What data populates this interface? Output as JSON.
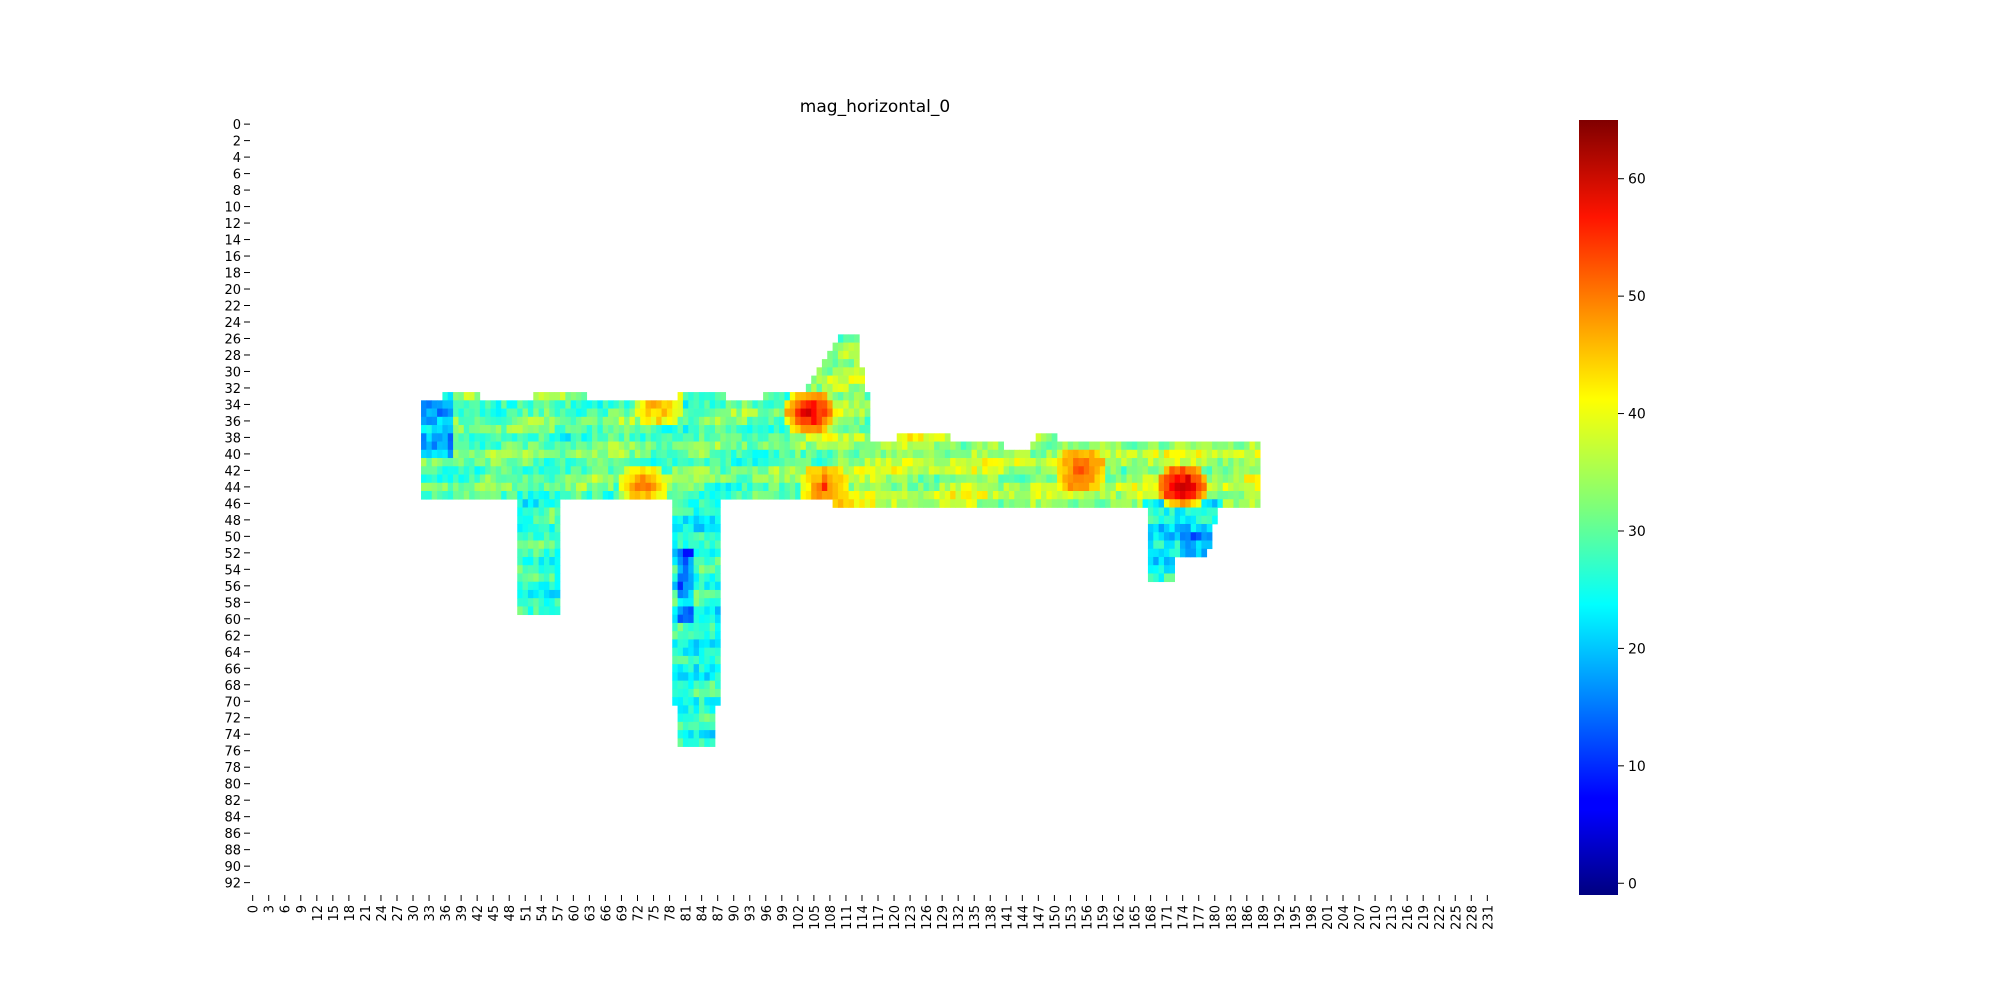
{
  "chart_data": {
    "type": "heatmap",
    "title": "mag_horizontal_0",
    "xlabel": "",
    "ylabel": "",
    "grid": false,
    "legend": "colorbar-right",
    "colormap": "jet",
    "vmin": -1,
    "vmax": 65,
    "n_rows": 94,
    "n_cols": 232,
    "x_tick_labels": [
      "0",
      "3",
      "6",
      "9",
      "12",
      "15",
      "18",
      "21",
      "24",
      "27",
      "30",
      "33",
      "36",
      "39",
      "42",
      "45",
      "48",
      "51",
      "54",
      "57",
      "60",
      "63",
      "66",
      "69",
      "72",
      "75",
      "78",
      "81",
      "84",
      "87",
      "90",
      "93",
      "96",
      "99",
      "102",
      "105",
      "108",
      "111",
      "114",
      "117",
      "120",
      "123",
      "126",
      "129",
      "132",
      "135",
      "138",
      "141",
      "144",
      "147",
      "150",
      "153",
      "156",
      "159",
      "162",
      "165",
      "168",
      "171",
      "174",
      "177",
      "180",
      "183",
      "186",
      "189",
      "192",
      "195",
      "198",
      "201",
      "204",
      "207",
      "210",
      "213",
      "216",
      "219",
      "222",
      "225",
      "228",
      "231"
    ],
    "y_tick_labels": [
      "0",
      "2",
      "4",
      "6",
      "8",
      "10",
      "12",
      "14",
      "16",
      "18",
      "20",
      "22",
      "24",
      "26",
      "28",
      "30",
      "32",
      "34",
      "36",
      "38",
      "40",
      "42",
      "44",
      "46",
      "48",
      "50",
      "52",
      "54",
      "56",
      "58",
      "60",
      "62",
      "64",
      "66",
      "68",
      "70",
      "72",
      "74",
      "76",
      "78",
      "80",
      "82",
      "84",
      "86",
      "88",
      "90",
      "92"
    ],
    "colorbar_tick_labels": [
      "0",
      "10",
      "20",
      "30",
      "40",
      "50",
      "60"
    ],
    "regions": [
      {
        "name": "body",
        "rows": [
          33,
          45
        ],
        "cols": [
          32,
          109
        ],
        "value": 30
      },
      {
        "name": "front-body",
        "rows": [
          38,
          46
        ],
        "cols": [
          109,
          188
        ],
        "value": 35
      },
      {
        "name": "top-bump",
        "rows": [
          26,
          38
        ],
        "cols": [
          104,
          115
        ],
        "value": 34
      },
      {
        "name": "left-leg",
        "rows": [
          46,
          59
        ],
        "cols": [
          50,
          57
        ],
        "value": 27
      },
      {
        "name": "magazine",
        "rows": [
          46,
          75
        ],
        "cols": [
          79,
          87
        ],
        "value": 26
      },
      {
        "name": "right-leg",
        "rows": [
          46,
          55
        ],
        "cols": [
          167,
          181
        ],
        "value": 24
      }
    ],
    "hotspots": [
      {
        "row": 35,
        "col": 104,
        "value": 60
      },
      {
        "row": 44,
        "col": 174,
        "value": 63
      },
      {
        "row": 42,
        "col": 155,
        "value": 52
      },
      {
        "row": 44,
        "col": 73,
        "value": 50
      },
      {
        "row": 34,
        "col": 76,
        "value": 48
      },
      {
        "row": 44,
        "col": 107,
        "value": 52
      }
    ]
  }
}
